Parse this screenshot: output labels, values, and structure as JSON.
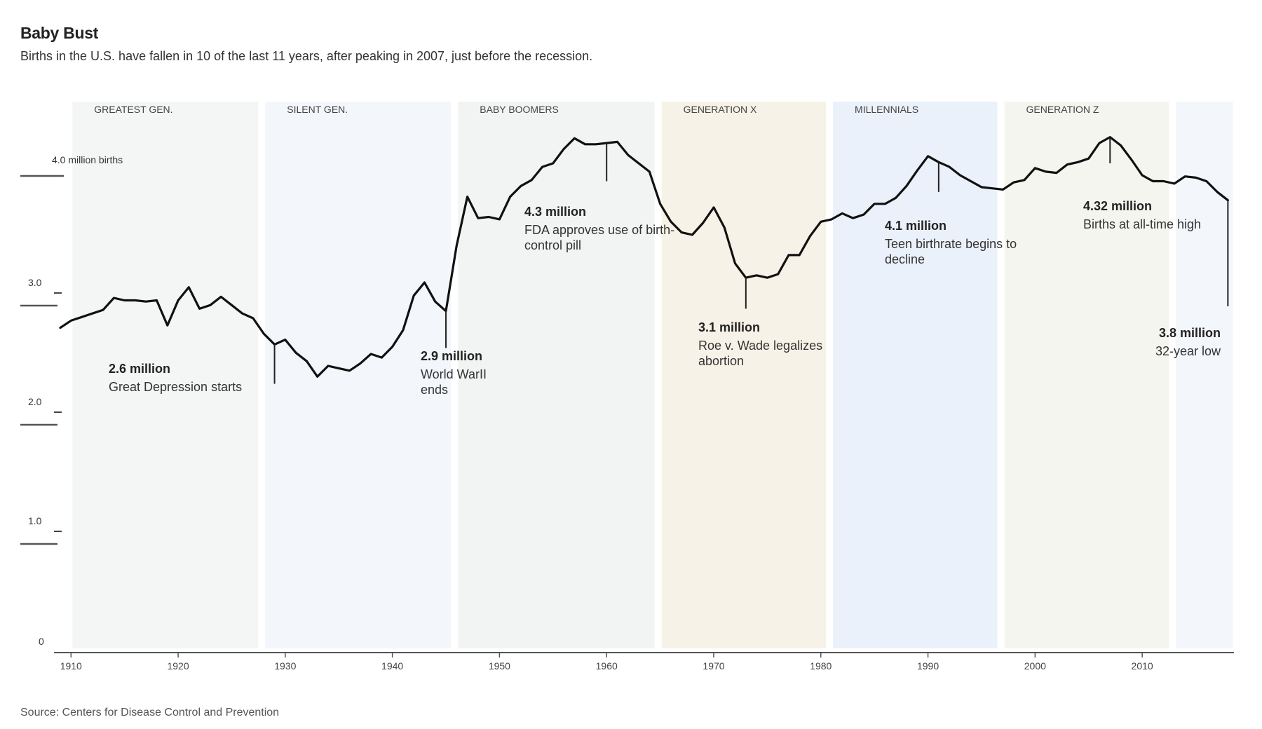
{
  "title": "Baby Bust",
  "subtitle": "Births in the U.S. have fallen in 10 of the last 11 years, after peaking in 2007, just before the recession.",
  "source": "Source: Centers for Disease Control and Prevention",
  "chart_data": {
    "type": "line",
    "xlim": [
      1909,
      2018.5
    ],
    "ylim": [
      0,
      4.5
    ],
    "ylabel_top": "4.0 million births",
    "y_ticks": [
      {
        "value": 0,
        "label": "0"
      },
      {
        "value": 1.0,
        "label": "1.0"
      },
      {
        "value": 2.0,
        "label": "2.0"
      },
      {
        "value": 3.0,
        "label": "3.0"
      },
      {
        "value": 4.0,
        "label": "4.0 million births"
      }
    ],
    "x_ticks": [
      1910,
      1920,
      1930,
      1940,
      1950,
      1960,
      1970,
      1980,
      1990,
      2000,
      2010
    ],
    "generations": [
      {
        "label": "GREATEST GEN.",
        "start": 1910,
        "end": 1927,
        "color": "#f4f5f5"
      },
      {
        "label": "SILENT GEN.",
        "start": 1928,
        "end": 1945,
        "color": "#f3f6fb"
      },
      {
        "label": "BABY BOOMERS",
        "start": 1946,
        "end": 1964,
        "color": "#f2f3f3"
      },
      {
        "label": "GENERATION X",
        "start": 1965,
        "end": 1980,
        "color": "#f7f2e7"
      },
      {
        "label": "MILLENNIALS",
        "start": 1981,
        "end": 1996,
        "color": "#ebf1fa"
      },
      {
        "label": "GENERATION Z",
        "start": 1997,
        "end": 2012,
        "color": "#f5f5f0"
      },
      {
        "label": "",
        "start": 2013,
        "end": 2018,
        "color": "#f3f6fb"
      }
    ],
    "series": [
      {
        "x": [
          1909,
          1910,
          1911,
          1912,
          1913,
          1914,
          1915,
          1916,
          1917,
          1918,
          1919,
          1920,
          1921,
          1922,
          1923,
          1924,
          1925,
          1926,
          1927,
          1928,
          1929,
          1930,
          1931,
          1932,
          1933,
          1934,
          1935,
          1936,
          1937,
          1938,
          1939,
          1940,
          1941,
          1942,
          1943,
          1944,
          1945,
          1946,
          1947,
          1948,
          1949,
          1950,
          1951,
          1952,
          1953,
          1954,
          1955,
          1956,
          1957,
          1958,
          1959,
          1960,
          1961,
          1962,
          1963,
          1964,
          1965,
          1966,
          1967,
          1968,
          1969,
          1970,
          1971,
          1972,
          1973,
          1974,
          1975,
          1976,
          1977,
          1978,
          1979,
          1980,
          1981,
          1982,
          1983,
          1984,
          1985,
          1986,
          1987,
          1988,
          1989,
          1990,
          1991,
          1992,
          1993,
          1994,
          1995,
          1996,
          1997,
          1998,
          1999,
          2000,
          2001,
          2002,
          2003,
          2004,
          2005,
          2006,
          2007,
          2008,
          2009,
          2010,
          2011,
          2012,
          2013,
          2014,
          2015,
          2016,
          2017,
          2018
        ],
        "y": [
          2.72,
          2.78,
          2.81,
          2.84,
          2.87,
          2.97,
          2.95,
          2.95,
          2.94,
          2.95,
          2.74,
          2.95,
          3.06,
          2.88,
          2.91,
          2.98,
          2.91,
          2.84,
          2.8,
          2.67,
          2.58,
          2.62,
          2.51,
          2.44,
          2.31,
          2.4,
          2.38,
          2.36,
          2.42,
          2.5,
          2.47,
          2.56,
          2.7,
          2.99,
          3.1,
          2.94,
          2.86,
          3.41,
          3.82,
          3.64,
          3.65,
          3.63,
          3.82,
          3.91,
          3.96,
          4.07,
          4.1,
          4.22,
          4.31,
          4.26,
          4.26,
          4.27,
          4.28,
          4.17,
          4.1,
          4.03,
          3.76,
          3.61,
          3.52,
          3.5,
          3.6,
          3.73,
          3.56,
          3.26,
          3.14,
          3.16,
          3.14,
          3.17,
          3.33,
          3.33,
          3.49,
          3.61,
          3.63,
          3.68,
          3.64,
          3.67,
          3.76,
          3.76,
          3.81,
          3.91,
          4.04,
          4.16,
          4.11,
          4.07,
          4.0,
          3.95,
          3.9,
          3.89,
          3.88,
          3.94,
          3.96,
          4.06,
          4.03,
          4.02,
          4.09,
          4.11,
          4.14,
          4.27,
          4.32,
          4.25,
          4.13,
          4.0,
          3.95,
          3.95,
          3.93,
          3.99,
          3.98,
          3.95,
          3.86,
          3.79
        ]
      }
    ],
    "annotations": [
      {
        "year": 1929,
        "value": "2.6 million",
        "text": [
          "Great Depression starts"
        ],
        "tick_from": 2.58,
        "tick_to": 2.25,
        "align": "start"
      },
      {
        "year": 1945,
        "value": "2.9 million",
        "text": [
          "World WarII",
          "ends"
        ],
        "tick_from": 2.86,
        "tick_to": 2.55,
        "align": "start"
      },
      {
        "year": 1960,
        "value": "4.3 million",
        "text": [
          "FDA approves use of birth-",
          "control pill"
        ],
        "tick_from": 4.26,
        "tick_to": 3.95,
        "align": "start"
      },
      {
        "year": 1973,
        "value": "3.1 million",
        "text": [
          "Roe v. Wade legalizes",
          "abortion"
        ],
        "tick_from": 3.14,
        "tick_to": 2.88,
        "align": "start"
      },
      {
        "year": 1991,
        "value": "4.1 million",
        "text": [
          "Teen birthrate begins to",
          "decline"
        ],
        "tick_from": 4.11,
        "tick_to": 3.86,
        "align": "start"
      },
      {
        "year": 2007,
        "value": "4.32 million",
        "text": [
          "Births at all-time high"
        ],
        "tick_from": 4.32,
        "tick_to": 4.1,
        "align": "start"
      },
      {
        "year": 2018,
        "value": "3.8 million",
        "text": [
          "32-year low"
        ],
        "tick_from": 3.79,
        "tick_to": 2.9,
        "align": "end"
      }
    ]
  }
}
